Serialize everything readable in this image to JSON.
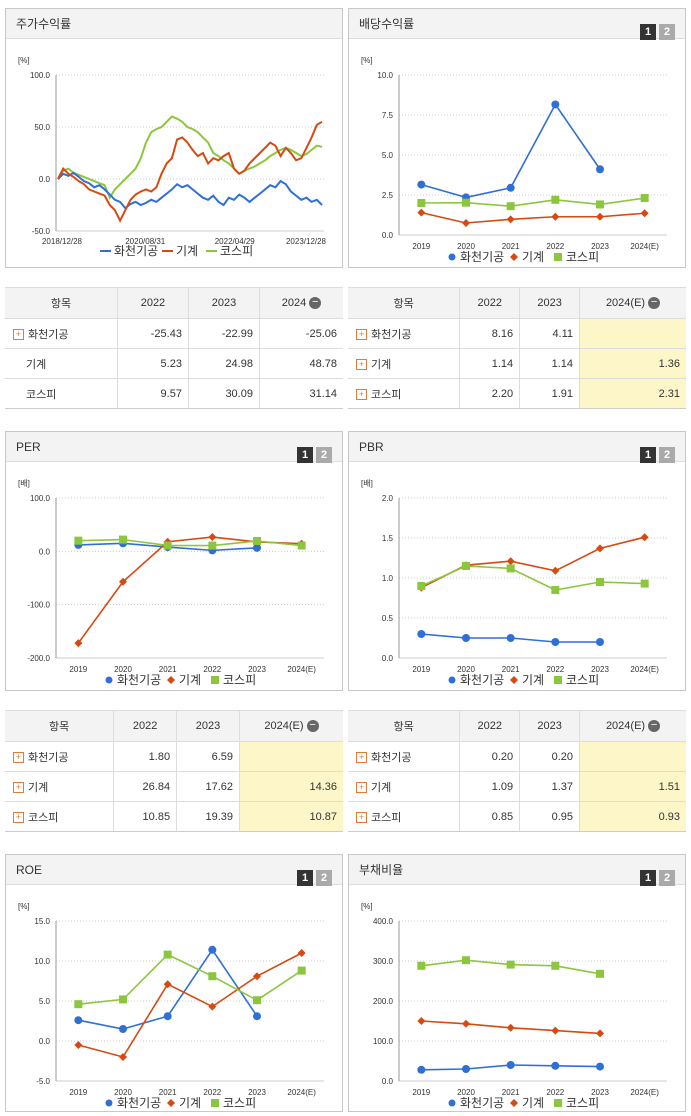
{
  "colors": {
    "company": "#2f6fd6",
    "industry": "#d64a12",
    "kospi": "#8cc63e",
    "grid": "#cccccc",
    "accent": "#fdf6c8"
  },
  "page_buttons": [
    "1",
    "2"
  ],
  "legend": [
    "화천기공",
    "기계",
    "코스피"
  ],
  "stock_return": {
    "title": "주가수익률",
    "unit": "[%]",
    "chart_data": {
      "type": "line",
      "y_ticks": [
        "100.0",
        "50.0",
        "0.0",
        "-50.0"
      ],
      "ylim": [
        -50,
        100
      ],
      "x_ticks": [
        "2018/12/28",
        "2020/08/31",
        "2022/04/29",
        "2023/12/28"
      ],
      "series": [
        {
          "name": "화천기공",
          "values": [
            0,
            5,
            3,
            6,
            2,
            -2,
            -4,
            -8,
            -6,
            -10,
            -15,
            -20,
            -22,
            -28,
            -24,
            -22,
            -25,
            -23,
            -20,
            -22,
            -18,
            -14,
            -10,
            -5,
            -8,
            -6,
            -10,
            -14,
            -18,
            -20,
            -16,
            -22,
            -25,
            -18,
            -20,
            -15,
            -18,
            -22,
            -18,
            -14,
            -10,
            -6,
            -8,
            -2,
            -5,
            -12,
            -16,
            -20,
            -18,
            -22,
            -20,
            -25
          ]
        },
        {
          "name": "기계",
          "values": [
            0,
            10,
            5,
            2,
            -2,
            -5,
            -10,
            -12,
            -14,
            -16,
            -25,
            -30,
            -40,
            -30,
            -20,
            -15,
            -12,
            -10,
            -12,
            -8,
            5,
            15,
            20,
            38,
            40,
            35,
            28,
            22,
            25,
            15,
            20,
            18,
            22,
            25,
            10,
            5,
            8,
            15,
            20,
            25,
            30,
            35,
            32,
            22,
            30,
            25,
            18,
            20,
            30,
            40,
            52,
            55
          ]
        },
        {
          "name": "코스피",
          "values": [
            0,
            8,
            10,
            6,
            4,
            2,
            0,
            -2,
            -4,
            -6,
            -18,
            -10,
            -5,
            0,
            5,
            10,
            20,
            35,
            45,
            48,
            50,
            55,
            60,
            58,
            55,
            50,
            48,
            45,
            40,
            35,
            25,
            22,
            18,
            15,
            10,
            5,
            8,
            10,
            12,
            15,
            18,
            22,
            25,
            28,
            30,
            28,
            25,
            22,
            24,
            28,
            32,
            31
          ]
        }
      ]
    }
  },
  "dividend": {
    "title": "배당수익률",
    "unit": "[%]",
    "chart_data": {
      "type": "line",
      "y_ticks": [
        "10.0",
        "7.5",
        "5.0",
        "2.5",
        "0.0"
      ],
      "ylim": [
        0,
        10
      ],
      "categories": [
        "2019",
        "2020",
        "2021",
        "2022",
        "2023",
        "2024(E)"
      ],
      "series": [
        {
          "name": "화천기공",
          "values": [
            3.15,
            2.35,
            2.95,
            8.16,
            4.11,
            null
          ]
        },
        {
          "name": "기계",
          "values": [
            1.4,
            0.75,
            0.98,
            1.14,
            1.14,
            1.36
          ]
        },
        {
          "name": "코스피",
          "values": [
            2.0,
            2.02,
            1.8,
            2.2,
            1.91,
            2.31
          ]
        }
      ]
    }
  },
  "per": {
    "title": "PER",
    "unit": "[배]",
    "chart_data": {
      "type": "line",
      "y_ticks": [
        "100.0",
        "0.0",
        "-100.0",
        "-200.0"
      ],
      "ylim": [
        -200,
        100
      ],
      "categories": [
        "2019",
        "2020",
        "2021",
        "2022",
        "2023",
        "2024(E)"
      ],
      "series": [
        {
          "name": "화천기공",
          "values": [
            12,
            15,
            8,
            1.8,
            6.59,
            null
          ]
        },
        {
          "name": "기계",
          "values": [
            -172,
            -57,
            18,
            26.84,
            17.62,
            14.36
          ]
        },
        {
          "name": "코스피",
          "values": [
            20,
            22,
            11,
            10.85,
            19.39,
            10.87
          ]
        }
      ]
    }
  },
  "pbr": {
    "title": "PBR",
    "unit": "[배]",
    "chart_data": {
      "type": "line",
      "y_ticks": [
        "2.0",
        "1.5",
        "1.0",
        "0.5",
        "0.0"
      ],
      "ylim": [
        0,
        2
      ],
      "categories": [
        "2019",
        "2020",
        "2021",
        "2022",
        "2023",
        "2024(E)"
      ],
      "series": [
        {
          "name": "화천기공",
          "values": [
            0.3,
            0.25,
            0.25,
            0.2,
            0.2,
            null
          ]
        },
        {
          "name": "기계",
          "values": [
            0.88,
            1.16,
            1.21,
            1.09,
            1.37,
            1.51
          ]
        },
        {
          "name": "코스피",
          "values": [
            0.9,
            1.15,
            1.12,
            0.85,
            0.95,
            0.93
          ]
        }
      ]
    }
  },
  "roe": {
    "title": "ROE",
    "unit": "[%]",
    "chart_data": {
      "type": "line",
      "y_ticks": [
        "15.0",
        "10.0",
        "5.0",
        "0.0",
        "-5.0"
      ],
      "ylim": [
        -5,
        15
      ],
      "categories": [
        "2019",
        "2020",
        "2021",
        "2022",
        "2023",
        "2024(E)"
      ],
      "series": [
        {
          "name": "화천기공",
          "values": [
            2.6,
            1.5,
            3.1,
            11.4,
            3.1,
            null
          ]
        },
        {
          "name": "기계",
          "values": [
            -0.5,
            -2,
            7.1,
            4.3,
            8.1,
            11
          ]
        },
        {
          "name": "코스피",
          "values": [
            4.6,
            5.2,
            10.8,
            8.1,
            5.1,
            8.8
          ]
        }
      ]
    }
  },
  "debt": {
    "title": "부채비율",
    "unit": "[%]",
    "chart_data": {
      "type": "line",
      "y_ticks": [
        "400.0",
        "300.0",
        "200.0",
        "100.0",
        "0.0"
      ],
      "ylim": [
        0,
        400
      ],
      "categories": [
        "2019",
        "2020",
        "2021",
        "2022",
        "2023",
        "2024(E)"
      ],
      "series": [
        {
          "name": "화천기공",
          "values": [
            28,
            30,
            40,
            38,
            36,
            null
          ]
        },
        {
          "name": "기계",
          "values": [
            150,
            143,
            133,
            126,
            119,
            null
          ]
        },
        {
          "name": "코스피",
          "values": [
            288,
            302,
            291,
            288,
            268,
            null
          ]
        }
      ]
    }
  },
  "tables": {
    "returns": {
      "head": [
        "항목",
        "2022",
        "2023",
        "2024"
      ],
      "rows": [
        [
          "화천기공",
          "-25.43",
          "-22.99",
          "-25.06"
        ],
        [
          "기계",
          "5.23",
          "24.98",
          "48.78"
        ],
        [
          "코스피",
          "9.57",
          "30.09",
          "31.14"
        ]
      ]
    },
    "dividend": {
      "head": [
        "항목",
        "2022",
        "2023",
        "2024(E)"
      ],
      "rows": [
        [
          "화천기공",
          "8.16",
          "4.11",
          ""
        ],
        [
          "기계",
          "1.14",
          "1.14",
          "1.36"
        ],
        [
          "코스피",
          "2.20",
          "1.91",
          "2.31"
        ]
      ]
    },
    "per": {
      "head": [
        "항목",
        "2022",
        "2023",
        "2024(E)"
      ],
      "rows": [
        [
          "화천기공",
          "1.80",
          "6.59",
          ""
        ],
        [
          "기계",
          "26.84",
          "17.62",
          "14.36"
        ],
        [
          "코스피",
          "10.85",
          "19.39",
          "10.87"
        ]
      ]
    },
    "pbr": {
      "head": [
        "항목",
        "2022",
        "2023",
        "2024(E)"
      ],
      "rows": [
        [
          "화천기공",
          "0.20",
          "0.20",
          ""
        ],
        [
          "기계",
          "1.09",
          "1.37",
          "1.51"
        ],
        [
          "코스피",
          "0.85",
          "0.95",
          "0.93"
        ]
      ]
    }
  }
}
